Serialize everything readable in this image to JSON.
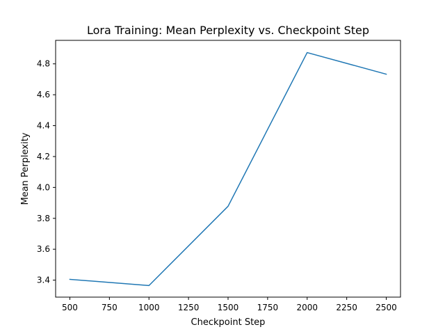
{
  "chart_data": {
    "type": "line",
    "title": "Lora Training: Mean Perplexity vs. Checkpoint Step",
    "xlabel": "Checkpoint Step",
    "ylabel": "Mean Perplexity",
    "x": [
      500,
      1000,
      1500,
      2000,
      2500
    ],
    "series": [
      {
        "values": [
          3.405,
          3.365,
          3.878,
          4.873,
          4.733
        ],
        "color": "#1f77b4"
      }
    ],
    "xlim": [
      410,
      2590
    ],
    "ylim": [
      3.29,
      4.952
    ],
    "xticks": [
      500,
      750,
      1000,
      1250,
      1500,
      1750,
      2000,
      2250,
      2500
    ],
    "yticks": [
      3.4,
      3.6,
      3.8,
      4.0,
      4.2,
      4.4,
      4.6,
      4.8
    ],
    "xtick_labels": [
      "500",
      "750",
      "1000",
      "1250",
      "1500",
      "1750",
      "2000",
      "2250",
      "2500"
    ],
    "ytick_labels": [
      "3.4",
      "3.6",
      "3.8",
      "4.0",
      "4.2",
      "4.4",
      "4.6",
      "4.8"
    ],
    "grid": false,
    "legend": "none"
  }
}
